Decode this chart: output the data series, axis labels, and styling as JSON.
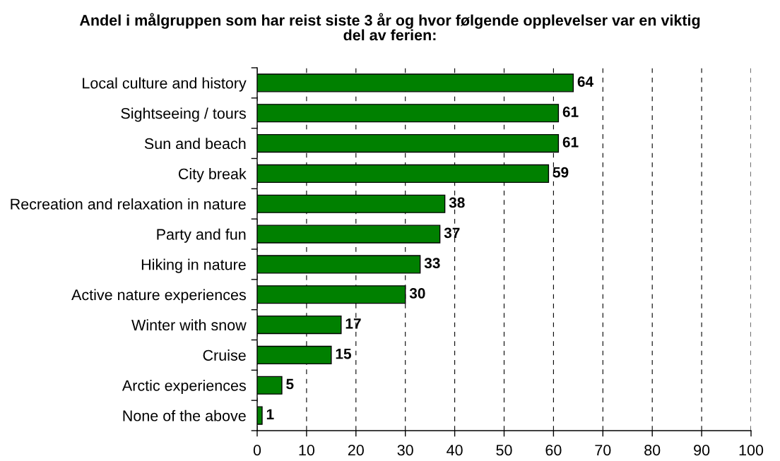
{
  "chart_data": {
    "type": "bar",
    "orientation": "horizontal",
    "title": "Andel i målgruppen som har reist siste 3 år og hvor følgende opplevelser var en viktig del av ferien:",
    "categories": [
      "Local culture and history",
      "Sightseeing / tours",
      "Sun and beach",
      "City break",
      "Recreation and relaxation in nature",
      "Party and fun",
      "Hiking in nature",
      "Active nature experiences",
      "Winter with snow",
      "Cruise",
      "Arctic experiences",
      "None of the above"
    ],
    "values": [
      64,
      61,
      61,
      59,
      38,
      37,
      33,
      30,
      17,
      15,
      5,
      1
    ],
    "color": "#008000",
    "xlim": [
      0,
      100
    ],
    "xticks": [
      0,
      10,
      20,
      30,
      40,
      50,
      60,
      70,
      80,
      90,
      100
    ],
    "grid": "x",
    "data_labels": true
  }
}
